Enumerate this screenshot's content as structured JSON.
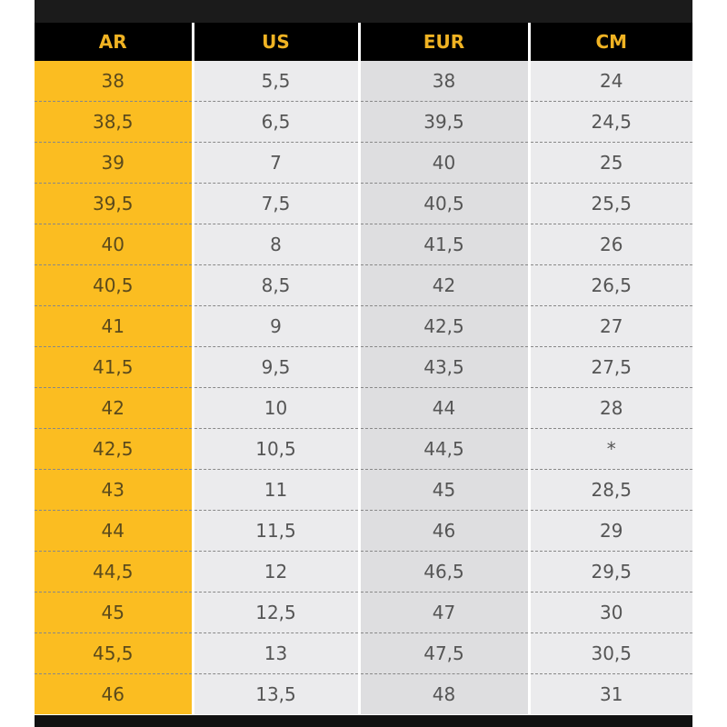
{
  "colors": {
    "header_bg": "#000000",
    "header_text": "#f0b323",
    "ar_column": "#fbbd21",
    "cell_bg": "#ebebed",
    "eur_bg": "#dedee0"
  },
  "headers": [
    "AR",
    "US",
    "EUR",
    "CM"
  ],
  "rows": [
    [
      "38",
      "5,5",
      "38",
      "24"
    ],
    [
      "38,5",
      "6,5",
      "39,5",
      "24,5"
    ],
    [
      "39",
      "7",
      "40",
      "25"
    ],
    [
      "39,5",
      "7,5",
      "40,5",
      "25,5"
    ],
    [
      "40",
      "8",
      "41,5",
      "26"
    ],
    [
      "40,5",
      "8,5",
      "42",
      "26,5"
    ],
    [
      "41",
      "9",
      "42,5",
      "27"
    ],
    [
      "41,5",
      "9,5",
      "43,5",
      "27,5"
    ],
    [
      "42",
      "10",
      "44",
      "28"
    ],
    [
      "42,5",
      "10,5",
      "44,5",
      "*"
    ],
    [
      "43",
      "11",
      "45",
      "28,5"
    ],
    [
      "44",
      "11,5",
      "46",
      "29"
    ],
    [
      "44,5",
      "12",
      "46,5",
      "29,5"
    ],
    [
      "45",
      "12,5",
      "47",
      "30"
    ],
    [
      "45,5",
      "13",
      "47,5",
      "30,5"
    ],
    [
      "46",
      "13,5",
      "48",
      "31"
    ]
  ]
}
